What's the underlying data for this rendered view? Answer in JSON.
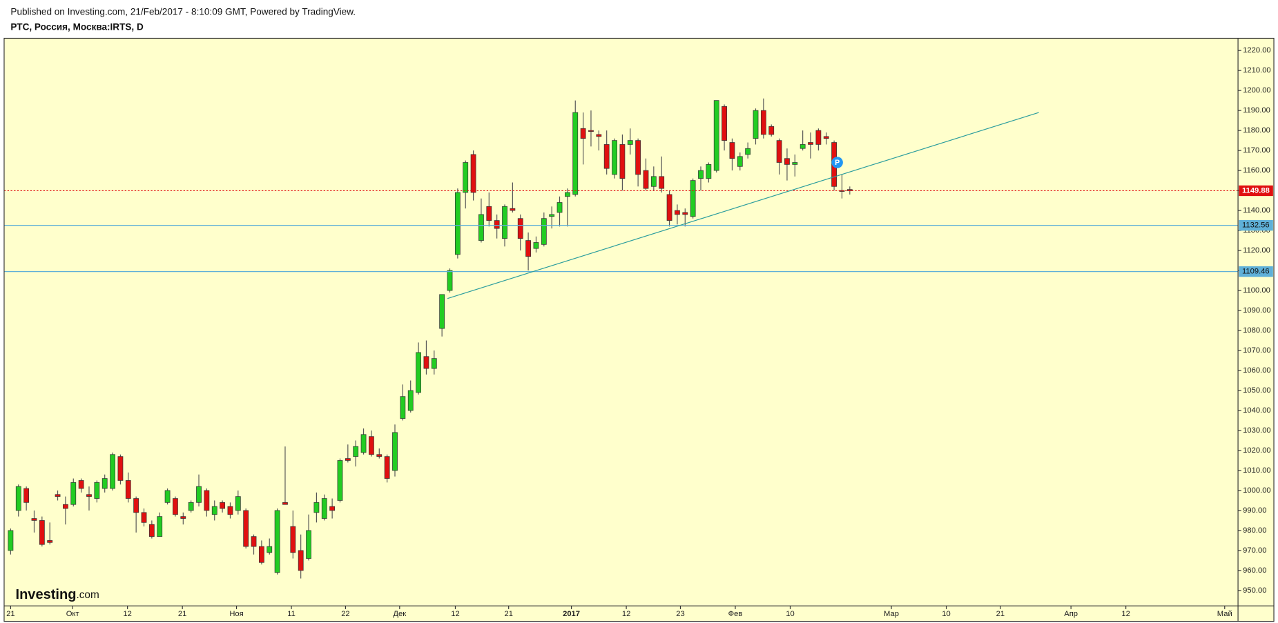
{
  "header": {
    "published": "Published on Investing.com, 21/Feb/2017 - 8:10:09 GMT, Powered by TradingView.",
    "symbol": "РТС, Россия, Москва:IRTS, D"
  },
  "logo": {
    "name": "Investing",
    "suffix": ".com"
  },
  "chart_data": {
    "type": "candlestick",
    "up_color": "#22cc22",
    "down_color": "#e01010",
    "open": [
      970,
      990,
      1001,
      986,
      985,
      975,
      998,
      993,
      993,
      1005,
      998,
      996,
      1001,
      1001,
      1017,
      1005,
      996,
      989,
      983,
      977,
      994,
      996,
      987,
      990,
      994,
      1000,
      988,
      994,
      992,
      990,
      990,
      977,
      972,
      969,
      959,
      994,
      982,
      970,
      966,
      989,
      986,
      992,
      995,
      1016,
      1017,
      1019,
      1027,
      1018,
      1017,
      1010,
      1036,
      1040,
      1049,
      1067,
      1061,
      1081,
      1100,
      1118,
      1149,
      1168,
      1125,
      1142,
      1135,
      1126,
      1141,
      1136,
      1125,
      1121,
      1123,
      1137,
      1139,
      1147,
      1148,
      1181,
      1180,
      1178,
      1173,
      1158,
      1173,
      1173,
      1175,
      1160,
      1152,
      1157,
      1148,
      1140,
      1139,
      1137,
      1156,
      1156,
      1160,
      1192,
      1174,
      1162,
      1168,
      1176,
      1190,
      1182,
      1175,
      1166,
      1163,
      1171,
      1174,
      1180,
      1177,
      1174,
      1150,
      1150.5
    ],
    "high": [
      981,
      1003,
      1002,
      990,
      987,
      984,
      1000,
      997,
      1006,
      1006,
      1002,
      1005,
      1008,
      1019,
      1018,
      1009,
      997,
      991,
      985,
      989,
      1001,
      997,
      989,
      995,
      1008,
      1001,
      995,
      995,
      994,
      1000,
      991,
      978,
      975,
      976,
      991,
      1022,
      990,
      978,
      988,
      999,
      998,
      996,
      1016,
      1023,
      1025,
      1031,
      1030,
      1021,
      1018,
      1033,
      1053,
      1055,
      1074,
      1075,
      1070,
      1098,
      1111,
      1151,
      1165,
      1170,
      1146,
      1149,
      1138,
      1143,
      1154,
      1138,
      1129,
      1127,
      1139,
      1142,
      1147,
      1151,
      1195,
      1189,
      1190,
      1180,
      1180,
      1176,
      1178,
      1181,
      1176,
      1166,
      1162,
      1167,
      1150,
      1143,
      1141,
      1156,
      1162,
      1164,
      1195,
      1193,
      1176,
      1169,
      1174,
      1191,
      1196,
      1183,
      1176,
      1171,
      1168,
      1180,
      1179,
      1181,
      1179,
      1175,
      1158,
      1152
    ],
    "low": [
      968,
      987,
      990,
      979,
      972,
      973,
      995,
      983,
      992,
      999,
      990,
      994,
      999,
      1000,
      1003,
      994,
      979,
      982,
      976,
      977,
      993,
      987,
      983,
      989,
      992,
      987,
      985,
      989,
      986,
      988,
      971,
      968,
      963,
      968,
      958,
      993,
      966,
      956,
      965,
      984,
      985,
      986,
      994,
      1014,
      1012,
      1018,
      1017,
      1016,
      1004,
      1007,
      1035,
      1039,
      1048,
      1058,
      1058,
      1077,
      1099,
      1116,
      1141,
      1145,
      1124,
      1132,
      1126,
      1122,
      1139,
      1120,
      1110,
      1119,
      1122,
      1131,
      1132,
      1132,
      1147,
      1163,
      1172,
      1170,
      1158,
      1156,
      1150,
      1168,
      1152,
      1150,
      1150,
      1149,
      1132,
      1133,
      1132,
      1136,
      1150,
      1154,
      1159,
      1170,
      1160,
      1160,
      1166,
      1173,
      1176,
      1177,
      1158,
      1155,
      1157,
      1170,
      1166,
      1170,
      1173,
      1150,
      1146,
      1148
    ],
    "close": [
      980,
      1002,
      994,
      985,
      973,
      974,
      997,
      991,
      1004,
      1001,
      997,
      1004,
      1006,
      1018,
      1005,
      996,
      989,
      984,
      977,
      987,
      1000,
      988,
      986,
      994,
      1002,
      990,
      992,
      991,
      988,
      997,
      972,
      972,
      964,
      972,
      990,
      993,
      969,
      960,
      980,
      994,
      996,
      990,
      1015,
      1015,
      1022,
      1028,
      1018,
      1017,
      1006,
      1029,
      1047,
      1050,
      1069,
      1061,
      1066,
      1098,
      1110,
      1149,
      1164,
      1149,
      1138,
      1135,
      1131,
      1142,
      1140,
      1126,
      1117,
      1124,
      1136,
      1138,
      1144,
      1149,
      1189,
      1176,
      1179.5,
      1177,
      1161,
      1175,
      1156,
      1175,
      1158,
      1151,
      1157,
      1151,
      1135,
      1138,
      1138,
      1155,
      1160,
      1163,
      1195,
      1175,
      1166,
      1167,
      1171,
      1190,
      1178,
      1178,
      1164,
      1163,
      1164,
      1173,
      1173,
      1173,
      1176,
      1152,
      1149.5,
      1149.88
    ],
    "xlim": [
      -0.83,
      156.5
    ],
    "xticks": [
      {
        "value": 0,
        "label": "21"
      },
      {
        "value": 7.9,
        "label": "Окт"
      },
      {
        "value": 14.9,
        "label": "12"
      },
      {
        "value": 21.9,
        "label": "21"
      },
      {
        "value": 28.8,
        "label": "Ноя"
      },
      {
        "value": 35.8,
        "label": "11"
      },
      {
        "value": 42.7,
        "label": "22"
      },
      {
        "value": 49.6,
        "label": "Дек"
      },
      {
        "value": 56.7,
        "label": "12"
      },
      {
        "value": 63.5,
        "label": "21"
      },
      {
        "value": 71.5,
        "label": "2017"
      },
      {
        "value": 78.5,
        "label": "12"
      },
      {
        "value": 85.4,
        "label": "23"
      },
      {
        "value": 92.4,
        "label": "Фев"
      },
      {
        "value": 99.4,
        "label": "10"
      },
      {
        "value": 112.3,
        "label": "Мар"
      },
      {
        "value": 119.3,
        "label": "10"
      },
      {
        "value": 126.2,
        "label": "21"
      },
      {
        "value": 135.2,
        "label": "Апр"
      },
      {
        "value": 142.2,
        "label": "12"
      },
      {
        "value": 154.8,
        "label": "Май"
      }
    ],
    "ylim": [
      942.3,
      1226.1
    ],
    "yticks": [
      {
        "value": 950,
        "label": "950.00"
      },
      {
        "value": 960,
        "label": "960.00"
      },
      {
        "value": 970,
        "label": "970.00"
      },
      {
        "value": 980,
        "label": "980.00"
      },
      {
        "value": 990,
        "label": "990.00"
      },
      {
        "value": 1000,
        "label": "1000.00"
      },
      {
        "value": 1010,
        "label": "1010.00"
      },
      {
        "value": 1020,
        "label": "1020.00"
      },
      {
        "value": 1030,
        "label": "1030.00"
      },
      {
        "value": 1040,
        "label": "1040.00"
      },
      {
        "value": 1050,
        "label": "1050.00"
      },
      {
        "value": 1060,
        "label": "1060.00"
      },
      {
        "value": 1070,
        "label": "1070.00"
      },
      {
        "value": 1080,
        "label": "1080.00"
      },
      {
        "value": 1090,
        "label": "1090.00"
      },
      {
        "value": 1100,
        "label": "1100.00"
      },
      {
        "value": 1110,
        "label": "1110.00"
      },
      {
        "value": 1120,
        "label": "1120.00"
      },
      {
        "value": 1130,
        "label": "1130.00"
      },
      {
        "value": 1140,
        "label": "1140.00"
      },
      {
        "value": 1150,
        "label": "1150.00"
      },
      {
        "value": 1160,
        "label": "1160.00"
      },
      {
        "value": 1170,
        "label": "1170.00"
      },
      {
        "value": 1180,
        "label": "1180.00"
      },
      {
        "value": 1190,
        "label": "1190.00"
      },
      {
        "value": 1200,
        "label": "1200.00"
      },
      {
        "value": 1210,
        "label": "1210.00"
      },
      {
        "value": 1220,
        "label": "1220.00"
      }
    ],
    "levels": [
      {
        "value": 1149.88,
        "color": "#e01010",
        "dashed": true
      },
      {
        "value": 1132.56,
        "color": "#5fb0d8",
        "dashed": false
      },
      {
        "value": 1109.46,
        "color": "#5fb0d8",
        "dashed": false
      }
    ],
    "trendline": {
      "x": [
        55.7,
        131.1
      ],
      "y": [
        1096,
        1189
      ],
      "color": "#2a9d9d"
    },
    "annotation": {
      "label": "P",
      "x": 105.4,
      "y": 1164,
      "color": "#2196f3"
    }
  }
}
